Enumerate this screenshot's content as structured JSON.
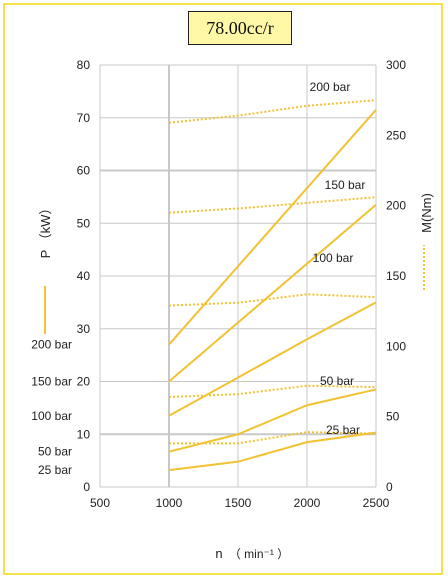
{
  "title": "78.00cc/r",
  "colors": {
    "curve": "#f2c231",
    "grid": "#c8c8c8",
    "frame": "#f5e24a",
    "title_bg": "#fdf7a6"
  },
  "chart_data": {
    "type": "line",
    "xlabel_main": "n",
    "xlabel_unit": "（ min⁻¹ ）",
    "ylabel_left": "P （kW）",
    "ylabel_right": "M(Nm)",
    "xlim": [
      500,
      2500
    ],
    "ylim_left": [
      0,
      80
    ],
    "ylim_right": [
      0,
      300
    ],
    "x_ticks": [
      500,
      1000,
      1500,
      2000,
      2500
    ],
    "y_left_ticks": [
      0,
      10,
      20,
      30,
      40,
      50,
      60,
      70,
      80
    ],
    "y_right_ticks": [
      0,
      50,
      100,
      150,
      200,
      250,
      300
    ],
    "power_series": [
      {
        "name": "200 bar",
        "x": [
          1000,
          2500
        ],
        "y": [
          27,
          71.5
        ]
      },
      {
        "name": "150 bar",
        "x": [
          1000,
          2500
        ],
        "y": [
          20,
          53.5
        ]
      },
      {
        "name": "100 bar",
        "x": [
          1000,
          2000,
          2500
        ],
        "y": [
          13.5,
          28,
          35
        ]
      },
      {
        "name": "50 bar",
        "x": [
          1000,
          1500,
          2000,
          2500
        ],
        "y": [
          6.7,
          10,
          15.5,
          18.5
        ]
      },
      {
        "name": "25 bar",
        "x": [
          1000,
          1500,
          2000,
          2500
        ],
        "y": [
          3.2,
          4.8,
          8.5,
          10.3
        ]
      }
    ],
    "torque_series": [
      {
        "name": "200 bar",
        "x": [
          1000,
          1500,
          2000,
          2500
        ],
        "y": [
          259,
          264,
          271,
          275
        ]
      },
      {
        "name": "150 bar",
        "x": [
          1000,
          1500,
          2000,
          2500
        ],
        "y": [
          195,
          198,
          202,
          206
        ]
      },
      {
        "name": "100 bar",
        "x": [
          1000,
          1500,
          2000,
          2500
        ],
        "y": [
          129,
          131,
          137,
          135
        ]
      },
      {
        "name": "50 bar",
        "x": [
          1000,
          1500,
          2000,
          2500
        ],
        "y": [
          64,
          66,
          72,
          71
        ]
      },
      {
        "name": "25 bar",
        "x": [
          1000,
          1500,
          2000,
          2500
        ],
        "y": [
          31,
          31,
          39,
          38
        ]
      }
    ]
  }
}
